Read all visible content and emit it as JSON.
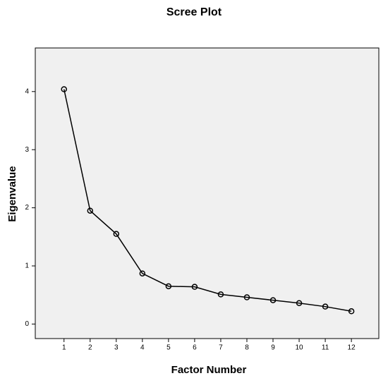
{
  "chart_data": {
    "type": "line",
    "title": "Scree Plot",
    "x_label": "Factor Number",
    "y_label": "Eigenvalue",
    "x": [
      1,
      2,
      3,
      4,
      5,
      6,
      7,
      8,
      9,
      10,
      11,
      12
    ],
    "series": [
      {
        "color": "#000000",
        "values": [
          4.04,
          1.95,
          1.55,
          0.87,
          0.65,
          0.64,
          0.51,
          0.46,
          0.41,
          0.36,
          0.3,
          0.22
        ]
      }
    ],
    "xlim": [
      -0.1,
      13.05
    ],
    "ylim": [
      -0.25,
      4.75
    ],
    "xticks": [
      1,
      2,
      3,
      4,
      5,
      6,
      7,
      8,
      9,
      10,
      11,
      12
    ],
    "yticks": [
      0,
      1,
      2,
      3,
      4
    ],
    "grid": false
  }
}
